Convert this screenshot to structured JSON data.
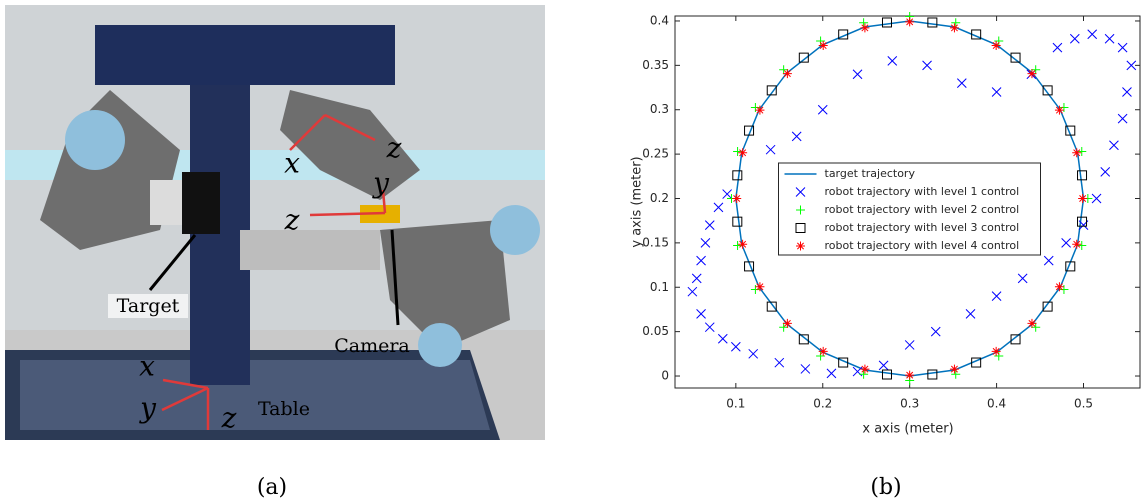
{
  "photo": {
    "labels": [
      "Target",
      "Camera",
      "Table"
    ],
    "axis_letters": [
      "x",
      "z",
      "y",
      "z",
      "x",
      "y",
      "z"
    ]
  },
  "captions": [
    "(a)",
    "(b)"
  ],
  "chart_data": {
    "type": "scatter",
    "xlabel": "x axis (meter)",
    "ylabel": "y axis (meter)",
    "xlim": [
      0.03,
      0.565
    ],
    "ylim": [
      -0.0135,
      0.4056
    ],
    "xticks": [
      0.1,
      0.2,
      0.3,
      0.4,
      0.5
    ],
    "yticks": [
      0,
      0.05,
      0.1,
      0.15,
      0.2,
      0.25,
      0.3,
      0.35,
      0.4
    ],
    "grid": false,
    "legend": "center",
    "series": [
      {
        "name": "target trajectory",
        "color": "#0072bd",
        "marker": "line",
        "x": [
          0.5,
          0.4932,
          0.4732,
          0.4414,
          0.4,
          0.3518,
          0.3,
          0.2482,
          0.2,
          0.1586,
          0.1268,
          0.1068,
          0.1,
          0.1068,
          0.1268,
          0.1586,
          0.2,
          0.2482,
          0.3,
          0.3518,
          0.4,
          0.4414,
          0.4732,
          0.4932,
          0.5
        ],
        "values": [
          0.2,
          0.2518,
          0.3,
          0.3414,
          0.3732,
          0.3932,
          0.4,
          0.3932,
          0.3732,
          0.3414,
          0.3,
          0.2518,
          0.2,
          0.1482,
          0.1,
          0.0586,
          0.0268,
          0.0068,
          0,
          0.0068,
          0.0268,
          0.0586,
          0.1,
          0.1482,
          0.2
        ]
      },
      {
        "name": "robot trajectory with level 1 control",
        "color": "#0000ff",
        "marker": "x",
        "x": [
          0.05,
          0.055,
          0.06,
          0.065,
          0.07,
          0.08,
          0.09,
          0.06,
          0.07,
          0.085,
          0.1,
          0.12,
          0.15,
          0.18,
          0.21,
          0.24,
          0.27,
          0.3,
          0.33,
          0.37,
          0.4,
          0.43,
          0.46,
          0.48,
          0.5,
          0.515,
          0.525,
          0.535,
          0.545,
          0.55,
          0.555,
          0.545,
          0.53,
          0.51,
          0.49,
          0.47,
          0.44,
          0.4,
          0.36,
          0.32,
          0.28,
          0.24,
          0.2,
          0.17,
          0.14
        ],
        "values": [
          0.095,
          0.11,
          0.13,
          0.15,
          0.17,
          0.19,
          0.205,
          0.07,
          0.055,
          0.042,
          0.033,
          0.025,
          0.015,
          0.008,
          0.003,
          0.005,
          0.012,
          0.035,
          0.05,
          0.07,
          0.09,
          0.11,
          0.13,
          0.15,
          0.17,
          0.2,
          0.23,
          0.26,
          0.29,
          0.32,
          0.35,
          0.37,
          0.38,
          0.385,
          0.38,
          0.37,
          0.34,
          0.32,
          0.33,
          0.35,
          0.355,
          0.34,
          0.3,
          0.27,
          0.255
        ]
      },
      {
        "name": "robot trajectory with level 2 control",
        "color": "#00ff00",
        "marker": "+",
        "x": [
          0.505,
          0.498,
          0.4775,
          0.445,
          0.4025,
          0.353,
          0.3,
          0.247,
          0.1975,
          0.155,
          0.1225,
          0.102,
          0.095,
          0.102,
          0.1225,
          0.155,
          0.1975,
          0.247,
          0.3,
          0.353,
          0.4025,
          0.445,
          0.4775,
          0.498
        ],
        "values": [
          0.2,
          0.253,
          0.3025,
          0.345,
          0.3775,
          0.398,
          0.405,
          0.398,
          0.3775,
          0.345,
          0.3025,
          0.253,
          0.2,
          0.147,
          0.0975,
          0.055,
          0.0225,
          0.002,
          -0.005,
          0.002,
          0.0225,
          0.055,
          0.0975,
          0.147
        ]
      },
      {
        "name": "robot trajectory with level 3 control",
        "color": "#000000",
        "marker": "square",
        "x": [
          0.4983,
          0.4848,
          0.4587,
          0.4218,
          0.3765,
          0.3261,
          0.2739,
          0.2235,
          0.1782,
          0.1413,
          0.1152,
          0.1017,
          0.1017,
          0.1152,
          0.1413,
          0.1782,
          0.2235,
          0.2739,
          0.3261,
          0.3765,
          0.4218,
          0.4587,
          0.4848,
          0.4983
        ],
        "values": [
          0.2261,
          0.2765,
          0.3218,
          0.3587,
          0.3848,
          0.3983,
          0.3983,
          0.3848,
          0.3587,
          0.3218,
          0.2765,
          0.2261,
          0.1739,
          0.1235,
          0.0782,
          0.0413,
          0.0152,
          0.0017,
          0.0017,
          0.0152,
          0.0413,
          0.0782,
          0.1235,
          0.1739
        ]
      },
      {
        "name": "robot trajectory with level 4 control",
        "color": "#ff0000",
        "marker": "*",
        "x": [
          0.499,
          0.4922,
          0.4723,
          0.4407,
          0.3995,
          0.3515,
          0.3,
          0.2485,
          0.2005,
          0.1593,
          0.1277,
          0.1078,
          0.101,
          0.1078,
          0.1277,
          0.1593,
          0.2005,
          0.2485,
          0.3,
          0.3515,
          0.3995,
          0.4407,
          0.4723,
          0.4922
        ],
        "values": [
          0.2,
          0.2515,
          0.2995,
          0.3407,
          0.3723,
          0.3922,
          0.399,
          0.3922,
          0.3723,
          0.3407,
          0.2995,
          0.2515,
          0.2,
          0.1485,
          0.1005,
          0.0593,
          0.0277,
          0.0078,
          0.001,
          0.0078,
          0.0277,
          0.0593,
          0.1005,
          0.1485
        ]
      }
    ]
  }
}
